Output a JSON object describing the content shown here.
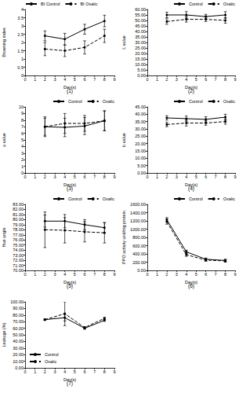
{
  "chart_data": [
    {
      "type": "line",
      "title": "(1)",
      "x_label": "Day(s)",
      "y_label": "Browning index",
      "x": [
        2,
        4,
        6,
        8
      ],
      "xlim": [
        0,
        9
      ],
      "xticks": [
        0,
        1,
        2,
        3,
        4,
        5,
        6,
        7,
        8,
        9
      ],
      "ylim": [
        0,
        4
      ],
      "yticks": [
        0,
        0.5,
        1,
        1.5,
        2,
        2.5,
        3,
        3.5,
        4
      ],
      "grid": false,
      "legend": "top-left",
      "series": [
        {
          "name": "BI Control",
          "color": "#000000",
          "line_style": "solid",
          "marker": "circle",
          "values": [
            2.4,
            2.2,
            2.8,
            3.3
          ],
          "errors": [
            0.3,
            0.35,
            0.3,
            0.35
          ]
        },
        {
          "name": "BI Oxalic",
          "color": "#000000",
          "line_style": "dashed",
          "marker": "circle",
          "values": [
            1.6,
            1.5,
            1.7,
            2.4
          ],
          "errors": [
            0.4,
            0.35,
            0.4,
            0.4
          ]
        }
      ]
    },
    {
      "type": "line",
      "title": "(2)",
      "x_label": "Day(s)",
      "y_label": "L value",
      "x": [
        2,
        4,
        6,
        8
      ],
      "xlim": [
        0,
        9
      ],
      "xticks": [
        0,
        1,
        2,
        3,
        4,
        5,
        6,
        7,
        8,
        9
      ],
      "ylim": [
        0,
        60
      ],
      "yticks": [
        {
          "value": 0,
          "label": "0.00"
        },
        {
          "value": 5,
          "label": "5.00"
        },
        {
          "value": 10,
          "label": "10.00"
        },
        {
          "value": 15,
          "label": "15.00"
        },
        {
          "value": 20,
          "label": "20.00"
        },
        {
          "value": 25,
          "label": "25.00"
        },
        {
          "value": 30,
          "label": "30.00"
        },
        {
          "value": 35,
          "label": "35.00"
        },
        {
          "value": 40,
          "label": "40.00"
        },
        {
          "value": 45,
          "label": "45.00"
        },
        {
          "value": 50,
          "label": "50.00"
        },
        {
          "value": 55,
          "label": "55.00"
        },
        {
          "value": 60,
          "label": "60.00"
        }
      ],
      "grid": false,
      "legend": "top-right",
      "series": [
        {
          "name": "Control",
          "color": "#000000",
          "line_style": "solid",
          "marker": "circle",
          "values": [
            55,
            55,
            53.5,
            55
          ],
          "errors": [
            2.5,
            3,
            2,
            3
          ]
        },
        {
          "name": "Oxalic",
          "color": "#000000",
          "line_style": "dashed",
          "marker": "circle",
          "values": [
            49,
            51,
            51,
            50
          ],
          "errors": [
            2.5,
            2.5,
            2,
            2.5
          ]
        }
      ]
    },
    {
      "type": "line",
      "title": "(3)",
      "x_label": "Day(s)",
      "y_label": "a value",
      "x": [
        2,
        4,
        6,
        8
      ],
      "xlim": [
        0,
        9
      ],
      "xticks": [
        0,
        1,
        2,
        3,
        4,
        5,
        6,
        7,
        8,
        9
      ],
      "ylim": [
        0,
        10
      ],
      "yticks": [
        0,
        1,
        2,
        3,
        4,
        5,
        6,
        7,
        8,
        9,
        10
      ],
      "grid": false,
      "legend": "top-right",
      "series": [
        {
          "name": "Control",
          "color": "#000000",
          "line_style": "solid",
          "marker": "circle",
          "values": [
            7,
            6.9,
            7.1,
            7.9
          ],
          "errors": [
            1.3,
            1.4,
            1.3,
            1.5
          ]
        },
        {
          "name": "Oxalic",
          "color": "#000000",
          "line_style": "dashed",
          "marker": "circle",
          "values": [
            7,
            7.5,
            7.5,
            7.9
          ],
          "errors": [
            1.5,
            1.5,
            1.2,
            1.5
          ]
        }
      ]
    },
    {
      "type": "line",
      "title": "(4)",
      "x_label": "Day(s)",
      "y_label": "b value",
      "x": [
        2,
        4,
        6,
        8
      ],
      "xlim": [
        0,
        9
      ],
      "xticks": [
        0,
        1,
        2,
        3,
        4,
        5,
        6,
        7,
        8,
        9
      ],
      "ylim": [
        0,
        45
      ],
      "yticks": [
        {
          "value": 0,
          "label": "0.00"
        },
        {
          "value": 5,
          "label": "5.00"
        },
        {
          "value": 10,
          "label": "10.00"
        },
        {
          "value": 15,
          "label": "15.00"
        },
        {
          "value": 20,
          "label": "20.00"
        },
        {
          "value": 25,
          "label": "25.00"
        },
        {
          "value": 30,
          "label": "30.00"
        },
        {
          "value": 35,
          "label": "35.00"
        },
        {
          "value": 40,
          "label": "40.00"
        },
        {
          "value": 45,
          "label": "45.00"
        }
      ],
      "grid": false,
      "legend": "top-right",
      "series": [
        {
          "name": "Control",
          "color": "#000000",
          "line_style": "solid",
          "marker": "circle",
          "values": [
            37.5,
            37,
            36.5,
            38
          ],
          "errors": [
            1.5,
            1.8,
            1.8,
            2
          ]
        },
        {
          "name": "Oxalic",
          "color": "#000000",
          "line_style": "dashed",
          "marker": "circle",
          "values": [
            33,
            34,
            34,
            35
          ],
          "errors": [
            1.5,
            2,
            1.5,
            1.8
          ]
        }
      ]
    },
    {
      "type": "line",
      "title": "(5)",
      "x_label": "Day(s)",
      "y_label": "Hue angle",
      "x": [
        2,
        4,
        6,
        8
      ],
      "xlim": [
        0,
        9
      ],
      "xticks": [
        0,
        1,
        2,
        3,
        4,
        5,
        6,
        7,
        8,
        9
      ],
      "ylim": [
        70,
        83
      ],
      "yticks": [
        {
          "value": 70,
          "label": "70.00"
        },
        {
          "value": 71,
          "label": "71.00"
        },
        {
          "value": 72,
          "label": "72.00"
        },
        {
          "value": 73,
          "label": "73.00"
        },
        {
          "value": 74,
          "label": "74.00"
        },
        {
          "value": 75,
          "label": "75.00"
        },
        {
          "value": 76,
          "label": "76.00"
        },
        {
          "value": 77,
          "label": "77.00"
        },
        {
          "value": 78,
          "label": "78.00"
        },
        {
          "value": 79,
          "label": "79.00"
        },
        {
          "value": 80,
          "label": "80.00"
        },
        {
          "value": 81,
          "label": "81.00"
        },
        {
          "value": 82,
          "label": "82.00"
        },
        {
          "value": 83,
          "label": "83.00"
        }
      ],
      "grid": false,
      "legend": "top-right",
      "series": [
        {
          "name": "Control",
          "color": "#000000",
          "line_style": "solid",
          "marker": "circle",
          "values": [
            79.7,
            79.7,
            79,
            78.4
          ],
          "errors": [
            1.2,
            1.3,
            1,
            1
          ]
        },
        {
          "name": "Oxalic",
          "color": "#000000",
          "line_style": "dashed",
          "marker": "circle",
          "values": [
            78,
            77.9,
            77.6,
            77.4
          ],
          "errors": [
            3.5,
            2.5,
            2,
            2
          ]
        }
      ]
    },
    {
      "type": "line",
      "title": "(6)",
      "x_label": "Day(s)",
      "y_label": "PPO activity unit/mg protein",
      "x": [
        2,
        4,
        6,
        8
      ],
      "xlim": [
        0,
        9
      ],
      "xticks": [
        0,
        1,
        2,
        3,
        4,
        5,
        6,
        7,
        8,
        9
      ],
      "ylim": [
        0,
        1600
      ],
      "yticks": [
        {
          "value": 0,
          "label": "0.00"
        },
        {
          "value": 200,
          "label": "200.00"
        },
        {
          "value": 400,
          "label": "400.00"
        },
        {
          "value": 600,
          "label": "600.00"
        },
        {
          "value": 800,
          "label": "800.00"
        },
        {
          "value": 1000,
          "label": "1000.00"
        },
        {
          "value": 1200,
          "label": "1200.00"
        },
        {
          "value": 1400,
          "label": "1400.00"
        },
        {
          "value": 1600,
          "label": "1600.00"
        }
      ],
      "grid": false,
      "legend": "top-right",
      "series": [
        {
          "name": "Control",
          "color": "#000000",
          "line_style": "solid",
          "marker": "circle",
          "values": [
            1230,
            450,
            270,
            240
          ],
          "errors": [
            50,
            40,
            30,
            30
          ]
        },
        {
          "name": "Oxalic",
          "color": "#000000",
          "line_style": "dashed",
          "marker": "circle",
          "values": [
            1180,
            380,
            250,
            230
          ],
          "errors": [
            60,
            40,
            30,
            30
          ]
        }
      ]
    },
    {
      "type": "line",
      "title": "(7)",
      "x_label": "Day(s)",
      "y_label": "Leakage (%)",
      "x": [
        2,
        4,
        6,
        8
      ],
      "xlim": [
        0,
        9
      ],
      "xticks": [
        0,
        1,
        2,
        3,
        4,
        5,
        6,
        7,
        8,
        9
      ],
      "ylim": [
        0,
        100
      ],
      "yticks": [
        {
          "value": 0,
          "label": "0.00"
        },
        {
          "value": 10,
          "label": "10.00"
        },
        {
          "value": 20,
          "label": "20.00"
        },
        {
          "value": 30,
          "label": "30.00"
        },
        {
          "value": 40,
          "label": "40.00"
        },
        {
          "value": 50,
          "label": "50.00"
        },
        {
          "value": 60,
          "label": "60.00"
        },
        {
          "value": 70,
          "label": "70.00"
        },
        {
          "value": 80,
          "label": "80.00"
        },
        {
          "value": 90,
          "label": "90.00"
        },
        {
          "value": 100,
          "label": "100.00"
        }
      ],
      "grid": false,
      "legend": "bottom-left",
      "series": [
        {
          "name": "Control",
          "color": "#000000",
          "line_style": "solid",
          "marker": "circle",
          "values": [
            73,
            76,
            60,
            72
          ],
          "errors": [
            1,
            5,
            1.5,
            1.5
          ]
        },
        {
          "name": "Oxalic",
          "color": "#000000",
          "line_style": "dashed",
          "marker": "circle",
          "values": [
            73,
            82,
            61,
            75
          ],
          "errors": [
            1,
            18,
            1.5,
            1.5
          ]
        }
      ]
    }
  ]
}
